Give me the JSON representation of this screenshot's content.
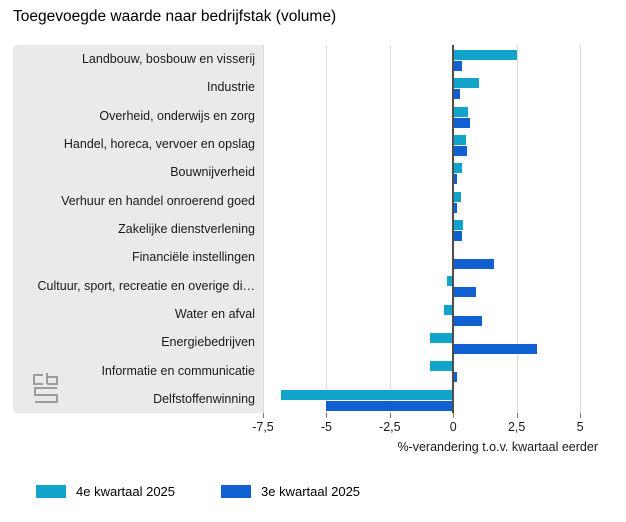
{
  "title": "Toegevoegde waarde naar bedrijfstak (volume)",
  "colors": {
    "q4_light_blue": "#11a3c9",
    "q3_dark_blue": "#1160d2",
    "label_panel_gray": "#eaeaea",
    "gridline_gray": "#dcdcdc",
    "zero_line_gray": "#4d4d4d",
    "logo_gray": "#9c9c9c"
  },
  "chart_data": {
    "type": "bar",
    "orientation": "horizontal",
    "title": "Toegevoegde waarde naar bedrijfstak (volume)",
    "categories": [
      "Landbouw, bosbouw en visserij",
      "Industrie",
      "Overheid, onderwijs en zorg",
      "Handel, horeca, vervoer en opslag",
      "Bouwnijverheid",
      "Verhuur en handel onroerend goed",
      "Zakelijke dienstverlening",
      "Financiële instellingen",
      "Cultuur, sport, recreatie en overige di…",
      "Water en afval",
      "Energiebedrijven",
      "Informatie en communicatie",
      "Delfstoffenwinning"
    ],
    "series": [
      {
        "name": "4e kwartaal 2025",
        "color": "#11a3c9",
        "values": [
          2.5,
          1.0,
          0.6,
          0.5,
          0.35,
          0.3,
          0.4,
          0.0,
          -0.25,
          -0.35,
          -0.9,
          -0.9,
          -6.8
        ]
      },
      {
        "name": "3e kwartaal 2025",
        "color": "#1160d2",
        "values": [
          0.35,
          0.25,
          0.65,
          0.55,
          0.15,
          0.15,
          0.35,
          1.6,
          0.9,
          1.15,
          3.3,
          0.15,
          -5.0
        ]
      }
    ],
    "xlabel": "%-verandering t.o.v. kwartaal eerder",
    "ylabel": "",
    "xlim": [
      -7.5,
      6.1
    ],
    "xticks": [
      -7.5,
      -5,
      -2.5,
      0,
      2.5,
      5
    ],
    "xtick_labels": [
      "-7,5",
      "-5",
      "-2,5",
      "0",
      "2,5",
      "5"
    ],
    "grid": true,
    "legend_position": "bottom"
  }
}
